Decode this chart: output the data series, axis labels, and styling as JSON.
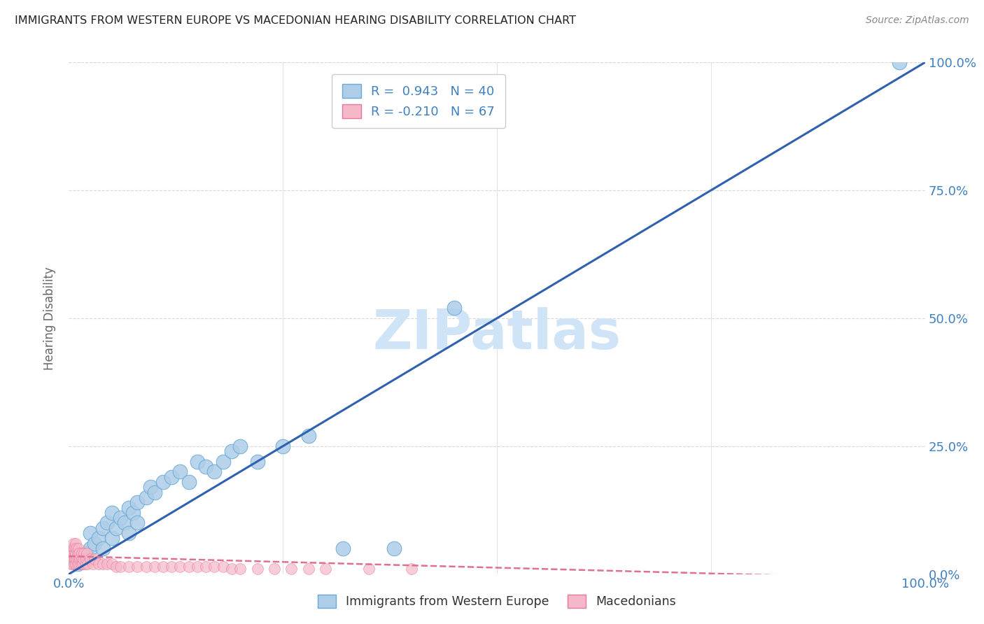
{
  "title": "IMMIGRANTS FROM WESTERN EUROPE VS MACEDONIAN HEARING DISABILITY CORRELATION CHART",
  "source": "Source: ZipAtlas.com",
  "ylabel": "Hearing Disability",
  "legend_blue_r": "0.943",
  "legend_blue_n": "40",
  "legend_pink_r": "-0.210",
  "legend_pink_n": "67",
  "blue_color": "#aecde8",
  "blue_edge_color": "#6aaad4",
  "blue_line_color": "#3060b0",
  "pink_color": "#f5b8c8",
  "pink_edge_color": "#e87898",
  "pink_line_color": "#e07090",
  "tick_label_color": "#4080c0",
  "ylabel_color": "#666666",
  "title_color": "#222222",
  "source_color": "#888888",
  "watermark_color": "#d0e4f7",
  "grid_color": "#d8d8d8",
  "blue_scatter_x": [
    1.0,
    1.5,
    2.0,
    2.5,
    2.5,
    3.0,
    3.5,
    4.0,
    4.0,
    4.5,
    5.0,
    5.0,
    5.5,
    6.0,
    6.5,
    7.0,
    7.0,
    7.5,
    8.0,
    8.0,
    9.0,
    9.5,
    10.0,
    11.0,
    12.0,
    13.0,
    14.0,
    15.0,
    16.0,
    17.0,
    18.0,
    19.0,
    20.0,
    22.0,
    25.0,
    28.0,
    32.0,
    38.0,
    45.0,
    97.0
  ],
  "blue_scatter_y": [
    2.0,
    3.5,
    4.0,
    5.0,
    8.0,
    6.0,
    7.0,
    5.0,
    9.0,
    10.0,
    7.0,
    12.0,
    9.0,
    11.0,
    10.0,
    8.0,
    13.0,
    12.0,
    14.0,
    10.0,
    15.0,
    17.0,
    16.0,
    18.0,
    19.0,
    20.0,
    18.0,
    22.0,
    21.0,
    20.0,
    22.0,
    24.0,
    25.0,
    22.0,
    25.0,
    27.0,
    5.0,
    5.0,
    52.0,
    100.0
  ],
  "pink_scatter_x": [
    0.1,
    0.15,
    0.2,
    0.25,
    0.3,
    0.35,
    0.4,
    0.4,
    0.5,
    0.5,
    0.5,
    0.6,
    0.6,
    0.7,
    0.7,
    0.8,
    0.8,
    0.8,
    0.9,
    0.9,
    1.0,
    1.0,
    1.1,
    1.1,
    1.2,
    1.2,
    1.3,
    1.4,
    1.5,
    1.5,
    1.6,
    1.7,
    1.8,
    1.9,
    2.0,
    2.1,
    2.2,
    2.5,
    2.8,
    3.0,
    3.5,
    4.0,
    4.5,
    5.0,
    5.5,
    6.0,
    7.0,
    8.0,
    9.0,
    10.0,
    11.0,
    12.0,
    13.0,
    14.0,
    15.0,
    16.0,
    17.0,
    18.0,
    19.0,
    20.0,
    22.0,
    24.0,
    26.0,
    28.0,
    30.0,
    35.0,
    40.0
  ],
  "pink_scatter_y": [
    3.0,
    4.0,
    2.0,
    5.0,
    3.0,
    4.0,
    2.0,
    5.0,
    3.0,
    4.0,
    6.0,
    2.0,
    5.0,
    3.0,
    4.0,
    2.0,
    4.0,
    6.0,
    3.0,
    5.0,
    2.0,
    4.0,
    3.0,
    5.0,
    2.0,
    4.0,
    3.0,
    2.0,
    3.0,
    4.0,
    2.0,
    3.0,
    4.0,
    2.0,
    3.0,
    4.0,
    2.0,
    3.0,
    2.0,
    3.0,
    2.0,
    2.0,
    2.0,
    2.0,
    1.5,
    1.5,
    1.5,
    1.5,
    1.5,
    1.5,
    1.5,
    1.5,
    1.5,
    1.5,
    1.5,
    1.5,
    1.5,
    1.5,
    1.0,
    1.0,
    1.0,
    1.0,
    1.0,
    1.0,
    1.0,
    1.0,
    1.0
  ],
  "blue_line_x": [
    0,
    100
  ],
  "blue_line_y": [
    0,
    100
  ],
  "pink_line_x": [
    0,
    100
  ],
  "pink_line_y": [
    3.5,
    -1.0
  ],
  "xtick_vals": [
    0,
    25,
    50,
    75,
    100
  ],
  "ytick_vals": [
    0,
    25,
    50,
    75,
    100
  ],
  "xlim": [
    0,
    100
  ],
  "ylim": [
    0,
    100
  ]
}
